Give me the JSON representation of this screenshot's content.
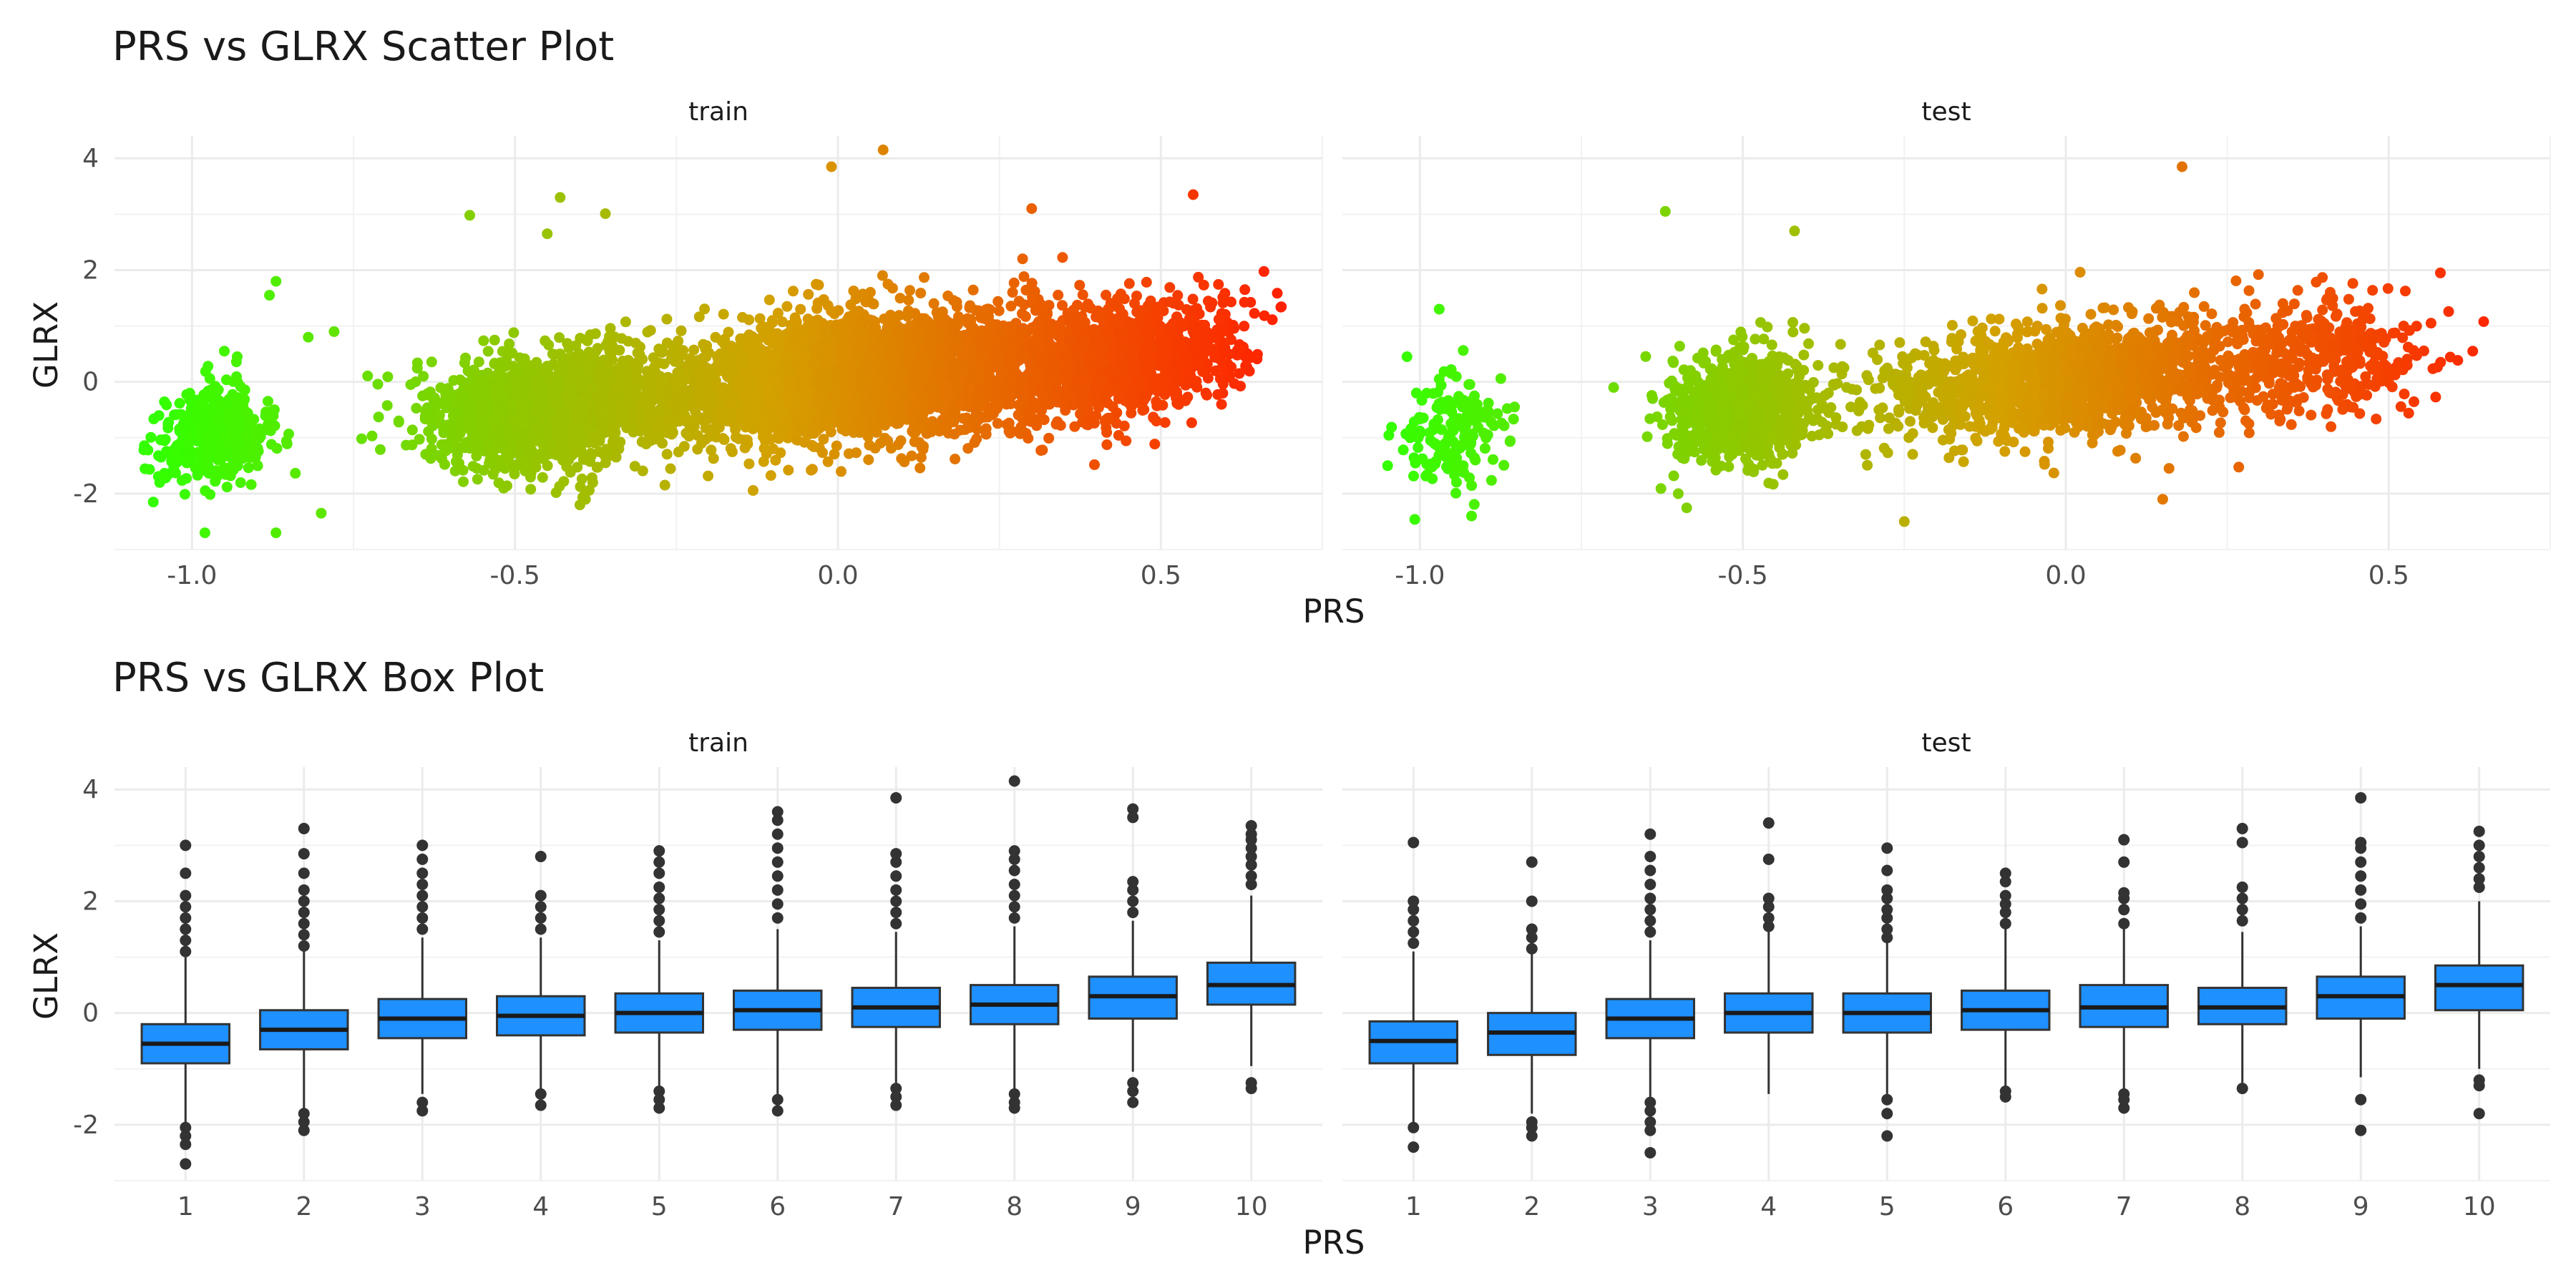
{
  "chart_data": [
    {
      "type": "scatter",
      "title": "PRS vs GLRX Scatter Plot",
      "xlabel": "PRS",
      "ylabel": "GLRX",
      "facets": [
        "train",
        "test"
      ],
      "xlim": [
        -1.12,
        0.75
      ],
      "ylim": [
        -3.0,
        4.4
      ],
      "xticks": [
        -1.0,
        -0.5,
        0.0,
        0.5
      ],
      "xtick_labels": [
        "-1.0",
        "-0.5",
        "0.0",
        "0.5"
      ],
      "yticks": [
        -2,
        0,
        2,
        4
      ],
      "ytick_labels": [
        "-2",
        "0",
        "2",
        "4"
      ],
      "grid": true,
      "color_scale": {
        "low": "#33ff00",
        "mid": "#d4a000",
        "high": "#ff2200",
        "mapped_to": "PRS"
      },
      "clusters": {
        "train": [
          {
            "x_center": -0.97,
            "x_spread": 0.045,
            "y_mean_at_x": -0.95,
            "y_sd": 0.42,
            "n": 420
          },
          {
            "x_center": -0.45,
            "x_spread": 0.09,
            "y_mean_at_x": -0.5,
            "y_sd": 0.5,
            "n": 1700
          },
          {
            "x_center": 0.05,
            "x_spread": 0.17,
            "y_mean_at_x": 0.1,
            "y_sd": 0.55,
            "n": 3200
          },
          {
            "x_center": 0.45,
            "x_spread": 0.09,
            "y_mean_at_x": 0.45,
            "y_sd": 0.5,
            "n": 900
          }
        ],
        "test": [
          {
            "x_center": -0.95,
            "x_spread": 0.04,
            "y_mean_at_x": -0.95,
            "y_sd": 0.45,
            "n": 160
          },
          {
            "x_center": -0.5,
            "x_spread": 0.06,
            "y_mean_at_x": -0.45,
            "y_sd": 0.5,
            "n": 700
          },
          {
            "x_center": 0.0,
            "x_spread": 0.15,
            "y_mean_at_x": 0.05,
            "y_sd": 0.52,
            "n": 1500
          },
          {
            "x_center": 0.4,
            "x_spread": 0.08,
            "y_mean_at_x": 0.4,
            "y_sd": 0.5,
            "n": 350
          }
        ]
      },
      "points": {
        "train": [
          {
            "x": 0.07,
            "y": 4.15
          },
          {
            "x": -0.01,
            "y": 3.85
          },
          {
            "x": -0.36,
            "y": 3.01
          },
          {
            "x": -0.43,
            "y": 3.3
          },
          {
            "x": -0.57,
            "y": 2.98
          },
          {
            "x": -0.45,
            "y": 2.65
          },
          {
            "x": -0.87,
            "y": 1.8
          },
          {
            "x": -0.88,
            "y": 1.55
          },
          {
            "x": -0.78,
            "y": 0.9
          },
          {
            "x": -0.82,
            "y": 0.8
          },
          {
            "x": 0.63,
            "y": 1.65
          },
          {
            "x": 0.55,
            "y": 3.35
          },
          {
            "x": 0.3,
            "y": 3.1
          },
          {
            "x": -0.98,
            "y": -2.7
          },
          {
            "x": -0.87,
            "y": -2.7
          },
          {
            "x": -0.8,
            "y": -2.35
          },
          {
            "x": -1.06,
            "y": -2.15
          },
          {
            "x": -1.05,
            "y": -1.8
          },
          {
            "x": -0.95,
            "y": 0.55
          },
          {
            "x": -0.93,
            "y": 0.45
          }
        ],
        "test": [
          {
            "x": 0.18,
            "y": 3.85
          },
          {
            "x": -0.62,
            "y": 3.05
          },
          {
            "x": -0.42,
            "y": 2.7
          },
          {
            "x": -0.97,
            "y": 1.3
          },
          {
            "x": -1.02,
            "y": 0.45
          },
          {
            "x": -0.97,
            "y": 0.05
          },
          {
            "x": -0.92,
            "y": -2.4
          },
          {
            "x": -0.25,
            "y": -2.5
          },
          {
            "x": 0.15,
            "y": -2.1
          },
          {
            "x": -1.05,
            "y": -1.5
          },
          {
            "x": -0.6,
            "y": -2.0
          },
          {
            "x": 0.63,
            "y": 0.55
          },
          {
            "x": 0.58,
            "y": 1.95
          },
          {
            "x": -0.7,
            "y": -0.1
          }
        ]
      }
    },
    {
      "type": "box",
      "title": "PRS vs GLRX Box Plot",
      "xlabel": "PRS",
      "ylabel": "GLRX",
      "facets": [
        "train",
        "test"
      ],
      "categories": [
        "1",
        "2",
        "3",
        "4",
        "5",
        "6",
        "7",
        "8",
        "9",
        "10"
      ],
      "ylim": [
        -3.0,
        4.4
      ],
      "yticks": [
        -2,
        0,
        2,
        4
      ],
      "ytick_labels": [
        "-2",
        "0",
        "2",
        "4"
      ],
      "grid": true,
      "fill": "#1e90ff",
      "series": [
        {
          "facet": "train",
          "boxes": [
            {
              "q1": -0.9,
              "median": -0.55,
              "q3": -0.2,
              "whisker_low": -1.95,
              "whisker_high": 1.0,
              "outliers": [
                -2.05,
                -2.2,
                -2.35,
                -2.7,
                1.1,
                1.3,
                1.5,
                1.7,
                1.9,
                2.1,
                2.5,
                3.0
              ]
            },
            {
              "q1": -0.65,
              "median": -0.3,
              "q3": 0.05,
              "whisker_low": -1.7,
              "whisker_high": 1.1,
              "outliers": [
                -1.8,
                -1.95,
                -2.1,
                1.2,
                1.4,
                1.6,
                1.8,
                2.0,
                2.2,
                2.5,
                2.85,
                3.3
              ]
            },
            {
              "q1": -0.45,
              "median": -0.1,
              "q3": 0.25,
              "whisker_low": -1.45,
              "whisker_high": 1.35,
              "outliers": [
                -1.6,
                -1.75,
                1.5,
                1.7,
                1.9,
                2.1,
                2.3,
                2.5,
                2.75,
                3.0
              ]
            },
            {
              "q1": -0.4,
              "median": -0.05,
              "q3": 0.3,
              "whisker_low": -1.35,
              "whisker_high": 1.35,
              "outliers": [
                -1.45,
                -1.65,
                1.5,
                1.7,
                1.9,
                2.1,
                2.8
              ]
            },
            {
              "q1": -0.35,
              "median": 0.0,
              "q3": 0.35,
              "whisker_low": -1.3,
              "whisker_high": 1.3,
              "outliers": [
                -1.4,
                -1.55,
                -1.7,
                1.45,
                1.65,
                1.85,
                2.05,
                2.25,
                2.5,
                2.7,
                2.9
              ]
            },
            {
              "q1": -0.3,
              "median": 0.05,
              "q3": 0.4,
              "whisker_low": -1.45,
              "whisker_high": 1.5,
              "outliers": [
                -1.55,
                -1.75,
                1.7,
                1.95,
                2.2,
                2.45,
                2.7,
                2.95,
                3.2,
                3.45,
                3.6
              ]
            },
            {
              "q1": -0.25,
              "median": 0.1,
              "q3": 0.45,
              "whisker_low": -1.25,
              "whisker_high": 1.45,
              "outliers": [
                -1.35,
                -1.5,
                -1.65,
                1.6,
                1.8,
                2.0,
                2.2,
                2.45,
                2.7,
                2.85,
                3.85
              ]
            },
            {
              "q1": -0.2,
              "median": 0.15,
              "q3": 0.5,
              "whisker_low": -1.35,
              "whisker_high": 1.55,
              "outliers": [
                -1.45,
                -1.6,
                -1.7,
                1.7,
                1.9,
                2.1,
                2.3,
                2.55,
                2.75,
                2.9,
                4.15
              ]
            },
            {
              "q1": -0.1,
              "median": 0.3,
              "q3": 0.65,
              "whisker_low": -1.05,
              "whisker_high": 1.65,
              "outliers": [
                -1.25,
                -1.4,
                -1.6,
                1.8,
                2.0,
                2.2,
                2.35,
                3.5,
                3.65
              ]
            },
            {
              "q1": 0.15,
              "median": 0.5,
              "q3": 0.9,
              "whisker_low": -0.95,
              "whisker_high": 2.1,
              "outliers": [
                -1.25,
                -1.35,
                2.3,
                2.45,
                2.65,
                2.8,
                2.95,
                3.1,
                3.2,
                3.35
              ]
            }
          ]
        },
        {
          "facet": "test",
          "boxes": [
            {
              "q1": -0.9,
              "median": -0.5,
              "q3": -0.15,
              "whisker_low": -1.95,
              "whisker_high": 1.1,
              "outliers": [
                -2.05,
                -2.4,
                1.25,
                1.45,
                1.65,
                1.85,
                2.0,
                3.05
              ]
            },
            {
              "q1": -0.75,
              "median": -0.35,
              "q3": 0.0,
              "whisker_low": -1.8,
              "whisker_high": 1.05,
              "outliers": [
                -1.95,
                -2.05,
                -2.2,
                1.15,
                1.35,
                1.5,
                2.0,
                2.7
              ]
            },
            {
              "q1": -0.45,
              "median": -0.1,
              "q3": 0.25,
              "whisker_low": -1.5,
              "whisker_high": 1.3,
              "outliers": [
                -1.6,
                -1.75,
                -1.95,
                -2.1,
                -2.5,
                1.45,
                1.65,
                1.85,
                2.05,
                2.3,
                2.55,
                2.8,
                3.2
              ]
            },
            {
              "q1": -0.35,
              "median": 0.0,
              "q3": 0.35,
              "whisker_low": -1.45,
              "whisker_high": 1.45,
              "outliers": [
                1.55,
                1.7,
                1.9,
                2.05,
                2.75,
                3.4
              ]
            },
            {
              "q1": -0.35,
              "median": 0.0,
              "q3": 0.35,
              "whisker_low": -1.45,
              "whisker_high": 1.25,
              "outliers": [
                -1.55,
                -1.8,
                -2.2,
                1.35,
                1.5,
                1.7,
                1.85,
                2.05,
                2.2,
                2.55,
                2.95
              ]
            },
            {
              "q1": -0.3,
              "median": 0.05,
              "q3": 0.4,
              "whisker_low": -1.35,
              "whisker_high": 1.5,
              "outliers": [
                -1.4,
                -1.5,
                1.6,
                1.8,
                1.95,
                2.1,
                2.35,
                2.5
              ]
            },
            {
              "q1": -0.25,
              "median": 0.1,
              "q3": 0.5,
              "whisker_low": -1.35,
              "whisker_high": 1.5,
              "outliers": [
                -1.45,
                -1.55,
                -1.7,
                1.6,
                1.85,
                2.05,
                2.15,
                2.7,
                3.1
              ]
            },
            {
              "q1": -0.2,
              "median": 0.1,
              "q3": 0.45,
              "whisker_low": -1.25,
              "whisker_high": 1.45,
              "outliers": [
                -1.35,
                1.65,
                1.85,
                2.05,
                2.25,
                3.05,
                3.3
              ]
            },
            {
              "q1": -0.1,
              "median": 0.3,
              "q3": 0.65,
              "whisker_low": -1.15,
              "whisker_high": 1.55,
              "outliers": [
                -1.55,
                -2.1,
                1.7,
                1.95,
                2.2,
                2.45,
                2.7,
                2.95,
                3.05,
                3.85
              ]
            },
            {
              "q1": 0.05,
              "median": 0.5,
              "q3": 0.85,
              "whisker_low": -1.0,
              "whisker_high": 2.0,
              "outliers": [
                -1.2,
                -1.3,
                -1.8,
                2.25,
                2.4,
                2.6,
                2.8,
                3.0,
                3.25
              ]
            }
          ]
        }
      ]
    }
  ]
}
